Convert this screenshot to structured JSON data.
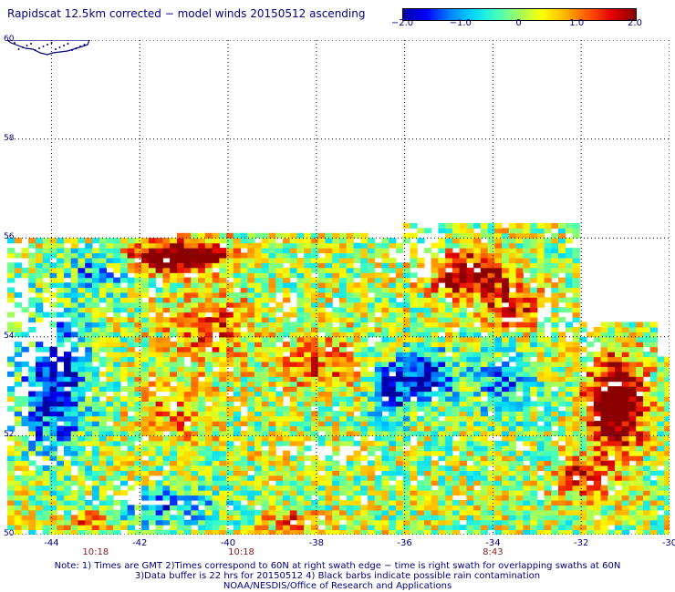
{
  "title": "Rapidscat 12.5km corrected − model winds 20150512 ascending",
  "colorbar": {
    "ticks": [
      {
        "value": -2.0,
        "label": "−2.0"
      },
      {
        "value": -1.0,
        "label": "−1.0"
      },
      {
        "value": 0,
        "label": "0"
      },
      {
        "value": 1.0,
        "label": "1.0"
      },
      {
        "value": 2.0,
        "label": "2.0"
      }
    ],
    "colors": [
      "#0000a0",
      "#0000ff",
      "#0080ff",
      "#00d8ff",
      "#40ffc0",
      "#a0ff60",
      "#ffff00",
      "#ffb000",
      "#ff5000",
      "#e00000",
      "#8b0000"
    ]
  },
  "lat_labels": [
    "60",
    "58",
    "56",
    "54",
    "52",
    "50"
  ],
  "lon_labels": [
    "-44",
    "-42",
    "-40",
    "-38",
    "-36",
    "-34",
    "-32",
    "-30"
  ],
  "time_labels": [
    {
      "lon": -43.0,
      "label": "10:18"
    },
    {
      "lon": -39.7,
      "label": "10:18"
    },
    {
      "lon": -34.0,
      "label": "8:43"
    }
  ],
  "notes": [
    "Note: 1) Times are GMT 2)Times correspond to 60N at right swath edge − time is right swath for overlapping swaths at 60N",
    "3)Data buffer is 22 hrs for 20150512 4) Black barbs indicate possible rain contamination",
    "NOAA/NESDIS/Office of Research and Applications"
  ],
  "map": {
    "lon_range": [
      -45,
      -30
    ],
    "lat_range": [
      50,
      60
    ],
    "units": "model wind difference (m/s)",
    "value_range": [
      -2.0,
      2.0
    ],
    "features": [
      "Greenland coast (top-left)",
      "strong positive differences near 55.5N 42-40W, 55N 35-33W, 53-52N 32-31W"
    ]
  }
}
